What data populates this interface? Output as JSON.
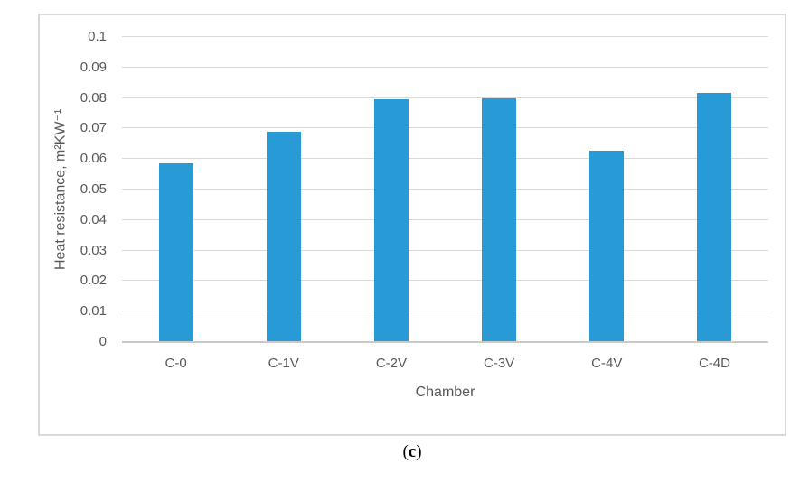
{
  "figure": {
    "caption": {
      "open": "(",
      "letter": "c",
      "close": ")"
    }
  },
  "chart_data": {
    "type": "bar",
    "title": "",
    "categories": [
      "C-0",
      "C-1V",
      "C-2V",
      "C-3V",
      "C-4V",
      "C-4D"
    ],
    "values": [
      0.0585,
      0.0688,
      0.0795,
      0.0798,
      0.0628,
      0.0817
    ],
    "xlabel": "Chamber",
    "ylabel": "Heat resistance, m²KW⁻¹",
    "ylim": [
      0,
      0.1
    ],
    "y_ticks": [
      {
        "value": 0,
        "label": "0"
      },
      {
        "value": 0.01,
        "label": "0.01"
      },
      {
        "value": 0.02,
        "label": "0.02"
      },
      {
        "value": 0.03,
        "label": "0.03"
      },
      {
        "value": 0.04,
        "label": "0.04"
      },
      {
        "value": 0.05,
        "label": "0.05"
      },
      {
        "value": 0.06,
        "label": "0.06"
      },
      {
        "value": 0.07,
        "label": "0.07"
      },
      {
        "value": 0.08,
        "label": "0.08"
      },
      {
        "value": 0.09,
        "label": "0.09"
      },
      {
        "value": 0.1,
        "label": "0.1"
      }
    ],
    "grid": "horizontal",
    "legend": "none",
    "colors": {
      "bar": "#289BD7",
      "gridline": "#d9d9d9",
      "axis_line": "#c9c9c9",
      "tick_label": "#595959",
      "axis_title": "#595959",
      "frame_border": "#d9d9d9"
    }
  }
}
